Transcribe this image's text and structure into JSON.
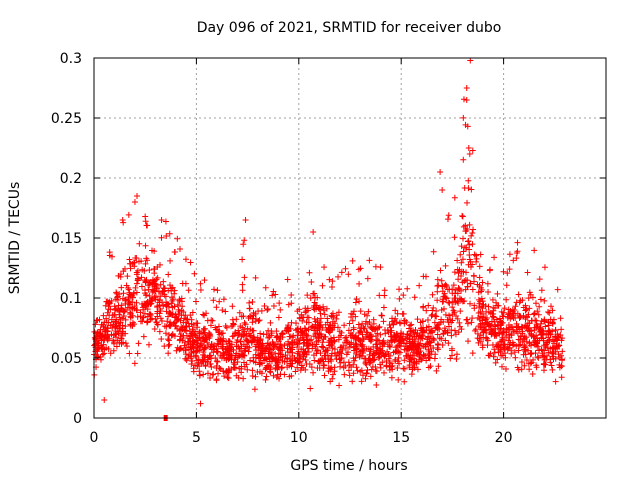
{
  "chart_data": {
    "type": "scatter",
    "title": "Day 096 of 2021, SRMTID for receiver dubo",
    "xlabel": "GPS time / hours",
    "ylabel": "SRMTID / TECUs",
    "xlim": [
      0,
      25
    ],
    "ylim": [
      0,
      0.3
    ],
    "x_ticks": [
      0,
      5,
      10,
      15,
      20
    ],
    "y_ticks": [
      0,
      0.05,
      0.1,
      0.15,
      0.2,
      0.25,
      0.3
    ],
    "y_tick_labels": [
      "0",
      "0.05",
      "0.1",
      "0.15",
      "0.2",
      "0.25",
      "0.3"
    ],
    "grid": true,
    "marker": "+",
    "color": "#ff0000",
    "series": [
      {
        "name": "SRMTID",
        "envelope": [
          {
            "x": 0.0,
            "base": 0.06,
            "spread": 0.03
          },
          {
            "x": 0.5,
            "base": 0.07,
            "spread": 0.04
          },
          {
            "x": 1.0,
            "base": 0.08,
            "spread": 0.05
          },
          {
            "x": 1.5,
            "base": 0.09,
            "spread": 0.06
          },
          {
            "x": 2.0,
            "base": 0.1,
            "spread": 0.07
          },
          {
            "x": 2.5,
            "base": 0.1,
            "spread": 0.06
          },
          {
            "x": 3.0,
            "base": 0.1,
            "spread": 0.06
          },
          {
            "x": 3.5,
            "base": 0.09,
            "spread": 0.05
          },
          {
            "x": 4.0,
            "base": 0.08,
            "spread": 0.05
          },
          {
            "x": 4.5,
            "base": 0.07,
            "spread": 0.04
          },
          {
            "x": 5.0,
            "base": 0.06,
            "spread": 0.04
          },
          {
            "x": 6.0,
            "base": 0.055,
            "spread": 0.035
          },
          {
            "x": 7.0,
            "base": 0.055,
            "spread": 0.04
          },
          {
            "x": 7.5,
            "base": 0.07,
            "spread": 0.06
          },
          {
            "x": 8.0,
            "base": 0.055,
            "spread": 0.035
          },
          {
            "x": 9.0,
            "base": 0.055,
            "spread": 0.035
          },
          {
            "x": 10.0,
            "base": 0.06,
            "spread": 0.04
          },
          {
            "x": 10.7,
            "base": 0.07,
            "spread": 0.06
          },
          {
            "x": 11.5,
            "base": 0.06,
            "spread": 0.04
          },
          {
            "x": 12.5,
            "base": 0.06,
            "spread": 0.045
          },
          {
            "x": 13.5,
            "base": 0.06,
            "spread": 0.045
          },
          {
            "x": 14.5,
            "base": 0.06,
            "spread": 0.045
          },
          {
            "x": 15.5,
            "base": 0.06,
            "spread": 0.035
          },
          {
            "x": 16.5,
            "base": 0.065,
            "spread": 0.04
          },
          {
            "x": 17.0,
            "base": 0.09,
            "spread": 0.07
          },
          {
            "x": 17.5,
            "base": 0.08,
            "spread": 0.05
          },
          {
            "x": 18.0,
            "base": 0.12,
            "spread": 0.09
          },
          {
            "x": 18.3,
            "base": 0.13,
            "spread": 0.12
          },
          {
            "x": 19.0,
            "base": 0.08,
            "spread": 0.04
          },
          {
            "x": 20.0,
            "base": 0.07,
            "spread": 0.045
          },
          {
            "x": 21.0,
            "base": 0.07,
            "spread": 0.05
          },
          {
            "x": 22.0,
            "base": 0.065,
            "spread": 0.045
          },
          {
            "x": 22.9,
            "base": 0.055,
            "spread": 0.04
          }
        ],
        "outliers": [
          {
            "x": 18.2,
            "y": 0.275
          },
          {
            "x": 18.2,
            "y": 0.265
          },
          {
            "x": 18.25,
            "y": 0.243
          },
          {
            "x": 18.3,
            "y": 0.225
          },
          {
            "x": 18.35,
            "y": 0.22
          },
          {
            "x": 16.9,
            "y": 0.205
          },
          {
            "x": 17.0,
            "y": 0.19
          },
          {
            "x": 2.1,
            "y": 0.185
          },
          {
            "x": 2.0,
            "y": 0.18
          },
          {
            "x": 7.4,
            "y": 0.165
          },
          {
            "x": 3.3,
            "y": 0.165
          },
          {
            "x": 1.4,
            "y": 0.165
          },
          {
            "x": 10.7,
            "y": 0.155
          },
          {
            "x": 0.5,
            "y": 0.015
          },
          {
            "x": 5.2,
            "y": 0.012
          }
        ],
        "point_count": 2600,
        "x_end": 22.9
      }
    ],
    "special_marker": {
      "x": 3.5,
      "y": 0.0
    }
  }
}
